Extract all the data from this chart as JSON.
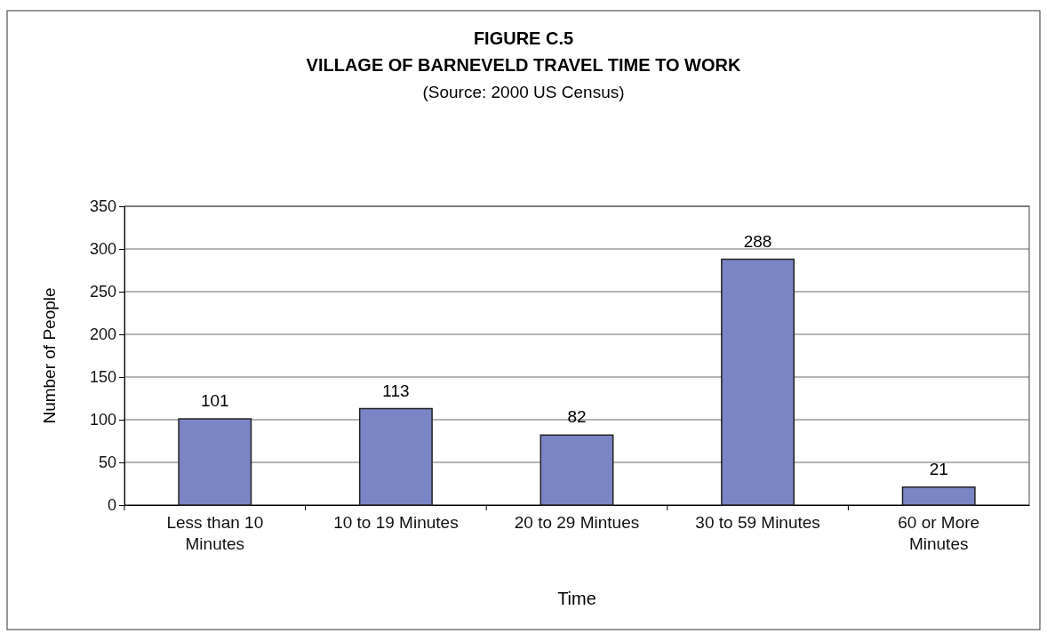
{
  "chart_data": {
    "type": "bar",
    "title": "FIGURE C.5",
    "subtitle": "VILLAGE OF BARNEVELD TRAVEL TIME TO WORK",
    "annotations": [
      "(Source:  2000 US Census)"
    ],
    "xlabel": "Time",
    "ylabel": "Number of People",
    "categories": [
      "Less than 10 Minutes",
      "10 to 19 Minutes",
      "20 to 29 Mintues",
      "30 to 59 Minutes",
      "60 or More Minutes"
    ],
    "values": [
      101,
      113,
      82,
      288,
      21
    ],
    "color": "#7b84c4",
    "ylim": [
      0,
      350
    ],
    "yticks": [
      0,
      50,
      100,
      150,
      200,
      250,
      300,
      350
    ],
    "grid": "y",
    "data_labels": true
  }
}
